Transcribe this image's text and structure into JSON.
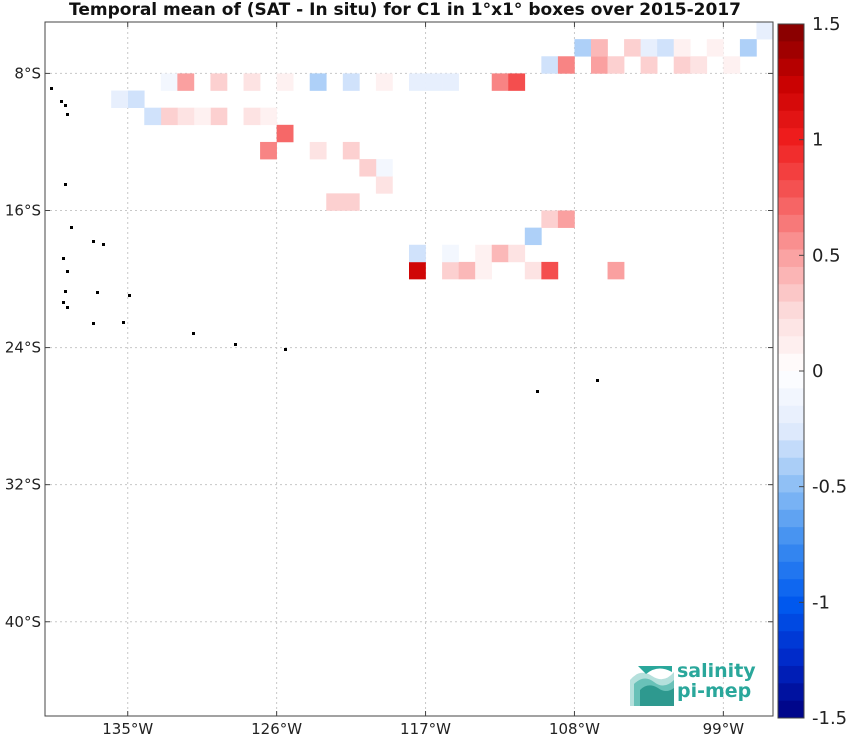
{
  "chart_data": {
    "type": "heatmap",
    "title": "Temporal mean of (SAT - In situ) for C1 in 1°x1° boxes over 2015-2017",
    "x_ticks": [
      {
        "value": -135,
        "label": "135°W"
      },
      {
        "value": -126,
        "label": "126°W"
      },
      {
        "value": -117,
        "label": "117°W"
      },
      {
        "value": -108,
        "label": "108°W"
      },
      {
        "value": -99,
        "label": "99°W"
      }
    ],
    "y_ticks": [
      {
        "value": -8,
        "label": "8°S"
      },
      {
        "value": -16,
        "label": "16°S"
      },
      {
        "value": -24,
        "label": "24°S"
      },
      {
        "value": -32,
        "label": "32°S"
      },
      {
        "value": -40,
        "label": "40°S"
      }
    ],
    "xlim": [
      -140,
      -96
    ],
    "ylim": [
      -45.5,
      -5
    ],
    "grid": true,
    "colorbar": {
      "range": [
        -1.5,
        1.5
      ],
      "levels": 40,
      "ticks": [
        {
          "value": 1.5,
          "label": "1.5"
        },
        {
          "value": 1,
          "label": "1"
        },
        {
          "value": 0.5,
          "label": "0.5"
        },
        {
          "value": 0,
          "label": "0"
        },
        {
          "value": -0.5,
          "label": "-0.5"
        },
        {
          "value": -1,
          "label": "-1"
        },
        {
          "value": -1.5,
          "label": "-1.5"
        }
      ]
    },
    "cells": [
      [
        -118,
        -19,
        1.2,
        1
      ],
      [
        -116,
        -19,
        0.3,
        1
      ],
      [
        -115,
        -19,
        0.4,
        1
      ],
      [
        -114,
        -19,
        0.1,
        1
      ],
      [
        -111,
        -19,
        0.2,
        1
      ],
      [
        -110,
        -19,
        0.8,
        1
      ],
      [
        -106,
        -19,
        0.5,
        1
      ],
      [
        -118,
        -18,
        -0.3,
        1
      ],
      [
        -116,
        -18,
        -0.1,
        1
      ],
      [
        -114,
        -18,
        0.1,
        1
      ],
      [
        -113,
        -18,
        0.4,
        1
      ],
      [
        -112,
        -18,
        0.2,
        1
      ],
      [
        -111,
        -17,
        -0.4,
        1
      ],
      [
        -110,
        -16,
        0.3,
        1
      ],
      [
        -109,
        -16,
        0.5,
        1
      ],
      [
        -123,
        -15,
        0.3,
        1
      ],
      [
        -122,
        -15,
        0.3,
        1
      ],
      [
        -120,
        -14,
        0.2,
        1
      ],
      [
        -120,
        -13,
        -0.1,
        1
      ],
      [
        -121,
        -13,
        0.3,
        1
      ],
      [
        -122,
        -12,
        0.3,
        1
      ],
      [
        -124,
        -12,
        0.2,
        1
      ],
      [
        -127,
        -12,
        0.6,
        1
      ],
      [
        -126,
        -11,
        0.7,
        1
      ],
      [
        -127,
        -10,
        0.1,
        1
      ],
      [
        -128,
        -10,
        0.2,
        1
      ],
      [
        -130,
        -10,
        0.3,
        1
      ],
      [
        -131,
        -10,
        0.1,
        1
      ],
      [
        -132,
        -10,
        0.2,
        1
      ],
      [
        -133,
        -10,
        0.3,
        1
      ],
      [
        -134,
        -10,
        -0.3,
        1
      ],
      [
        -135,
        -9,
        -0.3,
        1
      ],
      [
        -136,
        -9,
        -0.2,
        1
      ],
      [
        -133,
        -8,
        -0.1,
        1
      ],
      [
        -132,
        -8,
        0.5,
        1
      ],
      [
        -130,
        -8,
        0.3,
        1
      ],
      [
        -128,
        -8,
        0.2,
        1
      ],
      [
        -126,
        -8,
        0.1,
        1
      ],
      [
        -124,
        -8,
        -0.4,
        1
      ],
      [
        -122,
        -8,
        -0.3,
        1
      ],
      [
        -120,
        -8,
        0.1,
        1
      ],
      [
        -118,
        -8,
        -0.2,
        1
      ],
      [
        -117,
        -8,
        -0.2,
        1
      ],
      [
        -116,
        -8,
        -0.2,
        1
      ],
      [
        -113,
        -8,
        0.6,
        1
      ],
      [
        -112,
        -8,
        0.8,
        1
      ],
      [
        -110,
        -7,
        -0.3,
        1
      ],
      [
        -109,
        -7,
        0.6,
        1
      ],
      [
        -107,
        -7,
        0.5,
        1
      ],
      [
        -106,
        -7,
        0.3,
        1
      ],
      [
        -104,
        -7,
        0.3,
        1
      ],
      [
        -102,
        -7,
        0.3,
        1
      ],
      [
        -101,
        -7,
        0.2,
        1
      ],
      [
        -99,
        -7,
        0.1,
        1
      ],
      [
        -108,
        -6,
        -0.4,
        1
      ],
      [
        -107,
        -6,
        0.4,
        1
      ],
      [
        -105,
        -6,
        0.3,
        1
      ],
      [
        -104,
        -6,
        -0.2,
        1
      ],
      [
        -103,
        -6,
        -0.3,
        1
      ],
      [
        -102,
        -6,
        0.1,
        1
      ],
      [
        -100,
        -6,
        0.1,
        1
      ],
      [
        -98,
        -6,
        -0.4,
        1
      ],
      [
        -97,
        -5,
        -0.2,
        1
      ]
    ]
  }
}
